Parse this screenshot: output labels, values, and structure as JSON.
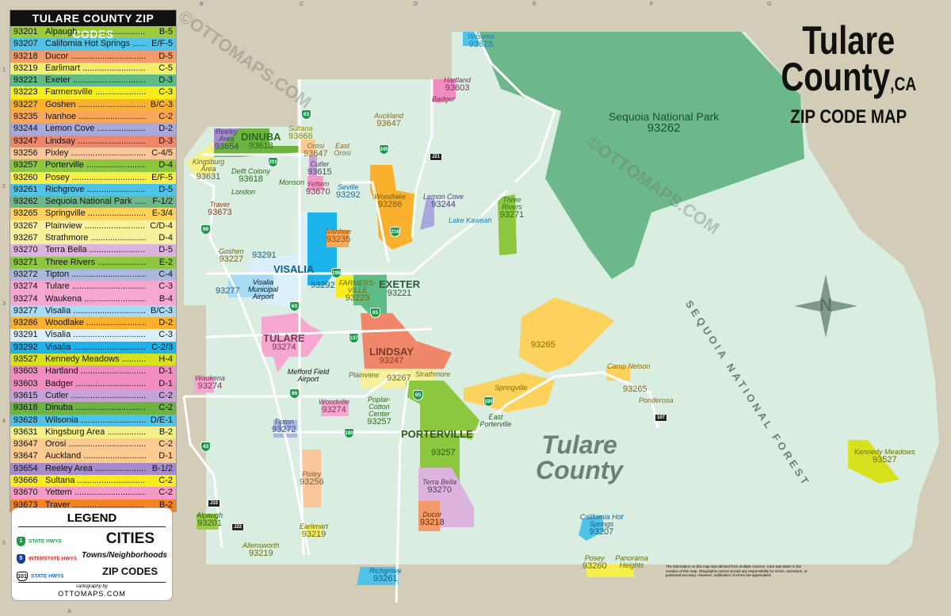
{
  "title": {
    "line1": "Tulare",
    "line2": "County",
    "state": ",CA",
    "subtitle": "ZIP CODE MAP"
  },
  "grid": {
    "letters": [
      "A",
      "B",
      "C",
      "D",
      "E",
      "F",
      "G"
    ],
    "numbers": [
      "1",
      "2",
      "3",
      "4",
      "5"
    ]
  },
  "zip_list": {
    "header": "TULARE COUNTY ZIP CODES",
    "rows": [
      {
        "zip": "93201",
        "name": "Alpaugh",
        "grid": "B-5",
        "color": "#9ccc3c"
      },
      {
        "zip": "93207",
        "name": "California Hot Springs",
        "grid": "E/F-5",
        "color": "#4fc3e8"
      },
      {
        "zip": "93218",
        "name": "Ducor",
        "grid": "D-5",
        "color": "#f39a6b"
      },
      {
        "zip": "93219",
        "name": "Earlimart",
        "grid": "C-5",
        "color": "#f2ee6b"
      },
      {
        "zip": "93221",
        "name": "Exeter",
        "grid": "D-3",
        "color": "#5dbb86"
      },
      {
        "zip": "93223",
        "name": "Farmersville",
        "grid": "C-3",
        "color": "#f7ec1c"
      },
      {
        "zip": "93227",
        "name": "Goshen",
        "grid": "B/C-3",
        "color": "#fbb12d"
      },
      {
        "zip": "93235",
        "name": "Ivanhoe",
        "grid": "C-2",
        "color": "#f9a85a"
      },
      {
        "zip": "93244",
        "name": "Lemon Cove",
        "grid": "D-2",
        "color": "#a9a8dd"
      },
      {
        "zip": "93247",
        "name": "Lindsay",
        "grid": "D-3",
        "color": "#f0876a"
      },
      {
        "zip": "93256",
        "name": "Pixley",
        "grid": "C-4/5",
        "color": "#fbc79a"
      },
      {
        "zip": "93257",
        "name": "Porterville",
        "grid": "D-4",
        "color": "#8dc63f"
      },
      {
        "zip": "93260",
        "name": "Posey",
        "grid": "E/F-5",
        "color": "#f6ee4a"
      },
      {
        "zip": "93261",
        "name": "Richgrove",
        "grid": "D-5",
        "color": "#4fc3e8"
      },
      {
        "zip": "93262",
        "name": "Sequoia National Park",
        "grid": "F-1/2",
        "color": "#6db88a"
      },
      {
        "zip": "93265",
        "name": "Springville",
        "grid": "E-3/4",
        "color": "#fcd15c"
      },
      {
        "zip": "93267",
        "name": "Plainview",
        "grid": "C/D-4",
        "color": "#f8f19b"
      },
      {
        "zip": "93267",
        "name": "Strathmore",
        "grid": "D-4",
        "color": "#f8f19b"
      },
      {
        "zip": "93270",
        "name": "Terra Bella",
        "grid": "D-5",
        "color": "#dcb3dc"
      },
      {
        "zip": "93271",
        "name": "Three Rivers",
        "grid": "E-2",
        "color": "#8dc63f"
      },
      {
        "zip": "93272",
        "name": "Tipton",
        "grid": "C-4",
        "color": "#a9b8df"
      },
      {
        "zip": "93274",
        "name": "Tulare",
        "grid": "C-3",
        "color": "#f5a7cf"
      },
      {
        "zip": "93274",
        "name": "Waukena",
        "grid": "B-4",
        "color": "#f5a7cf"
      },
      {
        "zip": "93277",
        "name": "Visalia",
        "grid": "B/C-3",
        "color": "#a6daf5"
      },
      {
        "zip": "93286",
        "name": "Woodlake",
        "grid": "D-2",
        "color": "#fbb12d"
      },
      {
        "zip": "93291",
        "name": "Visalia",
        "grid": "C-3",
        "color": "#dbeffb"
      },
      {
        "zip": "93292",
        "name": "Visalia",
        "grid": "C-2/3",
        "color": "#1cb2ea"
      },
      {
        "zip": "93527",
        "name": "Kennedy Meadows",
        "grid": "H-4",
        "color": "#d8e21c"
      },
      {
        "zip": "93603",
        "name": "Hartland",
        "grid": "D-1",
        "color": "#f08cbf"
      },
      {
        "zip": "93603",
        "name": "Badger",
        "grid": "D-1",
        "color": "#f08cbf"
      },
      {
        "zip": "93615",
        "name": "Cutler",
        "grid": "C-2",
        "color": "#c6a2d6"
      },
      {
        "zip": "93618",
        "name": "Dinuba",
        "grid": "C-2",
        "color": "#6cb43f"
      },
      {
        "zip": "93628",
        "name": "Wilsonia",
        "grid": "D/E-1",
        "color": "#4fc3e8"
      },
      {
        "zip": "93631",
        "name": "Kingsburg Area",
        "grid": "B-2",
        "color": "#f6f08a"
      },
      {
        "zip": "93647",
        "name": "Orosi",
        "grid": "C-2",
        "color": "#fcc98f"
      },
      {
        "zip": "93647",
        "name": "Auckland",
        "grid": "D-1",
        "color": "#fcc98f"
      },
      {
        "zip": "93654",
        "name": "Reeley Area",
        "grid": "B-1/2",
        "color": "#a68bcc"
      },
      {
        "zip": "93666",
        "name": "Sultana",
        "grid": "C-2",
        "color": "#f7ec1c"
      },
      {
        "zip": "93670",
        "name": "Yettem",
        "grid": "C-2",
        "color": "#f49ac6"
      },
      {
        "zip": "93673",
        "name": "Traver",
        "grid": "B-2",
        "color": "#f58220"
      }
    ]
  },
  "legend": {
    "title": "LEGEND",
    "items": [
      {
        "label": "STATE HWYS",
        "shield": "1",
        "color": "#1a9a4a"
      },
      {
        "label": "INTERSTATE HWYS",
        "shield": "5",
        "color": "#e2231a"
      },
      {
        "label": "STATE HWYS",
        "shield": "101",
        "color": "#1b63b5"
      }
    ],
    "cities": "CITIES",
    "towns": "Towns/Neighborhoods",
    "zips": "ZIP CODES",
    "credit_small": "cartography by",
    "credit": "OTTOMAPS.COM"
  },
  "map": {
    "places": [
      [
        "Wilsonia",
        "93628"
      ],
      [
        "Hartland",
        "93603"
      ],
      [
        "Badger",
        ""
      ],
      [
        "Auckland",
        "93647"
      ],
      [
        "Reeley Area",
        "93654"
      ],
      [
        "DINUBA",
        "93618"
      ],
      [
        "Sultana",
        "93666"
      ],
      [
        "Orosi",
        "93647"
      ],
      [
        "East Orosi",
        ""
      ],
      [
        "Kingsburg Area",
        "93631"
      ],
      [
        "Delft Colony",
        "93618"
      ],
      [
        "Monson",
        ""
      ],
      [
        "London",
        ""
      ],
      [
        "Cutler",
        "93615"
      ],
      [
        "Yettem",
        "93670"
      ],
      [
        "Seville",
        "93292"
      ],
      [
        "Traver",
        "93673"
      ],
      [
        "Woodlake",
        "93286"
      ],
      [
        "Lemon Cove",
        "93244"
      ],
      [
        "Lake Kaweah",
        ""
      ],
      [
        "Three Rivers",
        "93271"
      ],
      [
        "Sequoia National Park",
        "93262"
      ],
      [
        "Ivanhoe",
        "93235"
      ],
      [
        "Goshen",
        "93227"
      ],
      [
        "",
        "93291"
      ],
      [
        "VISALIA",
        ""
      ],
      [
        "",
        "93277"
      ],
      [
        "Visalia Municipal Airport",
        ""
      ],
      [
        "",
        "93292"
      ],
      [
        "FARMERS-VILLE",
        "93223"
      ],
      [
        "EXETER",
        "93221"
      ],
      [
        "TULARE",
        "93274"
      ],
      [
        "LINDSAY",
        "93247"
      ],
      [
        "Mefford Field Airport",
        ""
      ],
      [
        "Waukena",
        "93274"
      ],
      [
        "Plainview",
        ""
      ],
      [
        "",
        "93267"
      ],
      [
        "Strathmore",
        ""
      ],
      [
        "",
        "93265"
      ],
      [
        "Camp Nelson",
        ""
      ],
      [
        "Springville",
        ""
      ],
      [
        "",
        "93265"
      ],
      [
        "Ponderosa",
        ""
      ],
      [
        "Woodville",
        "93274"
      ],
      [
        "Poplar-Cotton Center",
        "93257"
      ],
      [
        "PORTERVILLE",
        ""
      ],
      [
        "East Porterville",
        ""
      ],
      [
        "Tipton",
        "93272"
      ],
      [
        "",
        "93257"
      ],
      [
        "Kennedy Meadows",
        "93527"
      ],
      [
        "Pixley",
        "93256"
      ],
      [
        "Terra Bella",
        "93270"
      ],
      [
        "Ducor",
        "93218"
      ],
      [
        "Alpaugh",
        "93201"
      ],
      [
        "California Hot Springs",
        "93207"
      ],
      [
        "Earlimart",
        "93219"
      ],
      [
        "Allensworth",
        "93219"
      ],
      [
        "Posey",
        "93260"
      ],
      [
        "Panorama Heights",
        ""
      ],
      [
        "Richgrove",
        "93261"
      ]
    ],
    "county_label": [
      "Tulare",
      "County"
    ],
    "forest_label": "SEQUOIA NATIONAL FOREST",
    "compass": "N",
    "highways": [
      "63",
      "245",
      "201",
      "99",
      "198",
      "216",
      "137",
      "65",
      "190",
      "43",
      "99",
      "65",
      "190",
      "63"
    ],
    "county_roads": [
      "J21",
      "J33",
      "J22",
      "107"
    ],
    "disclaimer": "The information on this map was derived from multiple sources. Care was taken in the creation of this map. Ottographix cannot accept any responsibility for errors, omissions, or positional accuracy. However, notification of errors are appreciated.",
    "watermark": "©OTTOMAPS.COM"
  },
  "colors": {
    "county": "#d9eee1",
    "outside": "#d3ccb6",
    "park": "#6db88a",
    "road": "#ffffff"
  }
}
